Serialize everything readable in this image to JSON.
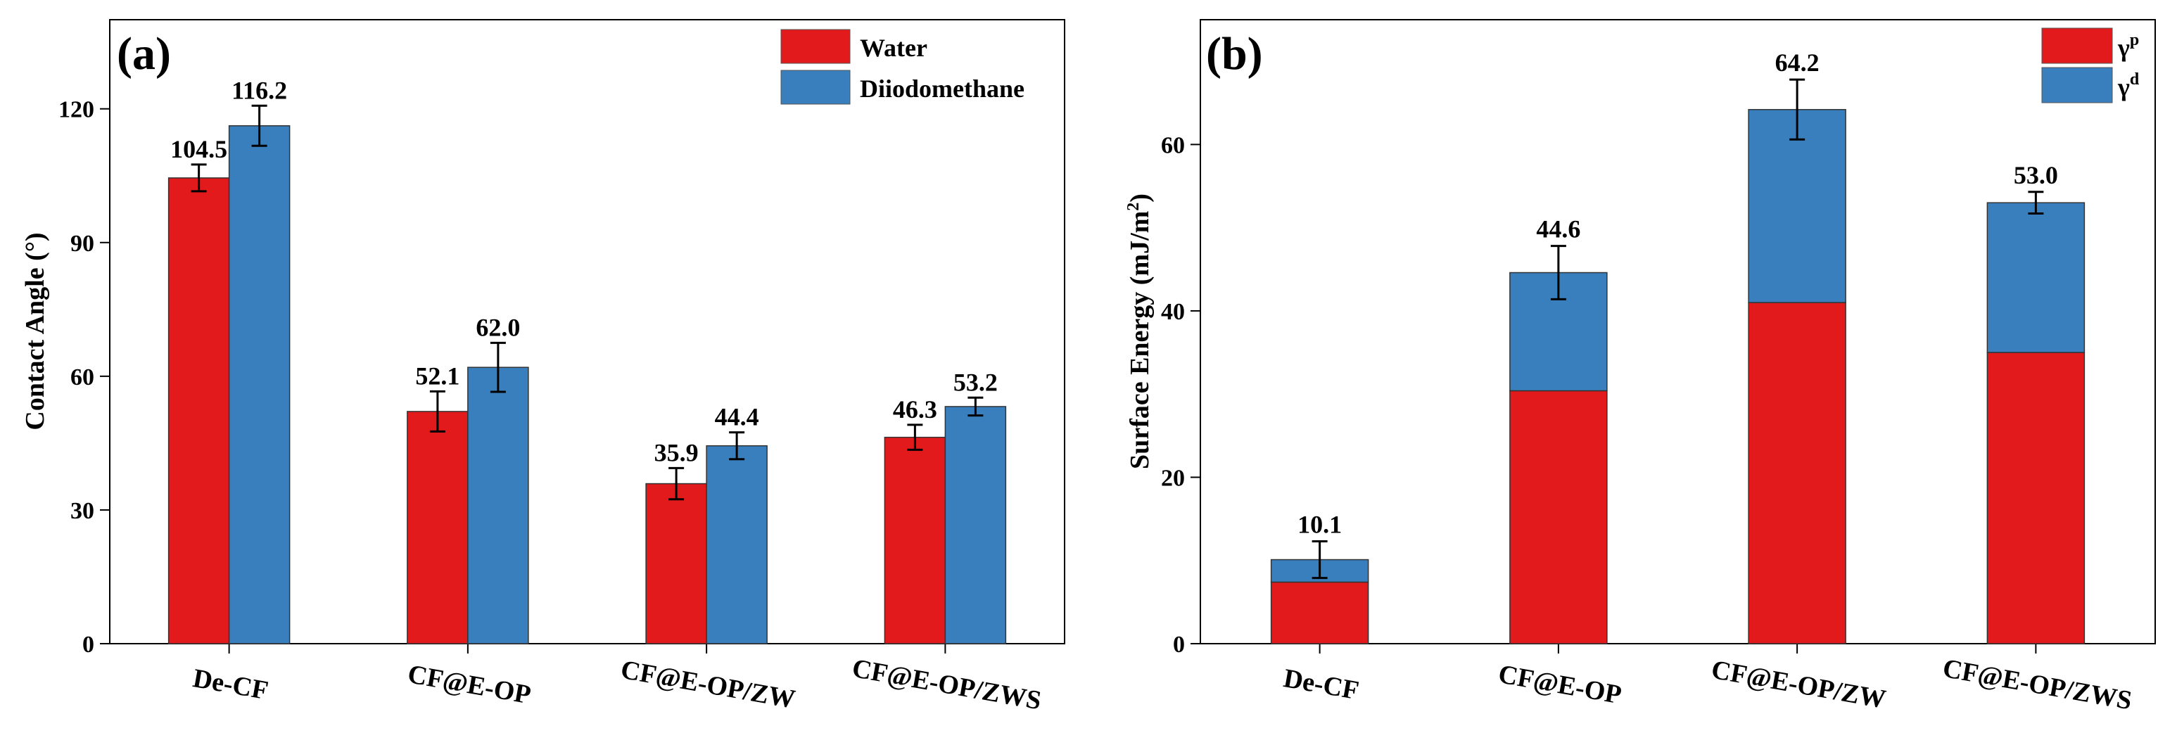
{
  "colors": {
    "water": "#e31a1c",
    "diiodomethane": "#3a7fbd",
    "gamma_p": "#e31a1c",
    "gamma_d": "#3a7fbd"
  },
  "chart_data": [
    {
      "type": "bar",
      "panel": "(a)",
      "ylabel": "Contact Angle (°)",
      "ylim": [
        0,
        140
      ],
      "yticks": [
        0,
        30,
        60,
        90,
        120
      ],
      "categories": [
        "De-CF",
        "CF@E-OP",
        "CF@E-OP/ZW",
        "CF@E-OP/ZWS"
      ],
      "series": [
        {
          "name": "Water",
          "values": [
            104.5,
            52.1,
            35.9,
            46.3
          ],
          "errors": [
            3.0,
            4.5,
            3.5,
            2.8
          ],
          "labels": [
            "104.5",
            "52.1",
            "35.9",
            "46.3"
          ]
        },
        {
          "name": "Diiodomethane",
          "values": [
            116.2,
            62.0,
            44.4,
            53.2
          ],
          "errors": [
            4.5,
            5.5,
            3.0,
            2.0
          ],
          "labels": [
            "116.2",
            "62.0",
            "44.4",
            "53.2"
          ]
        }
      ],
      "legend_position": "top-right"
    },
    {
      "type": "stacked-bar",
      "panel": "(b)",
      "ylabel": "Surface Energy (mJ/m",
      "ylabel_sup": "2",
      "ylabel_end": ")",
      "ylim": [
        0,
        75
      ],
      "yticks": [
        0,
        20,
        40,
        60
      ],
      "categories": [
        "De-CF",
        "CF@E-OP",
        "CF@E-OP/ZW",
        "CF@E-OP/ZWS"
      ],
      "series": [
        {
          "name": "γ",
          "sup": "p",
          "values": [
            7.4,
            30.4,
            41.0,
            35.0
          ]
        },
        {
          "name": "γ",
          "sup": "d",
          "values": [
            2.7,
            14.2,
            23.2,
            18.0
          ]
        }
      ],
      "totals": [
        10.1,
        44.6,
        64.2,
        53.0
      ],
      "total_labels": [
        "10.1",
        "44.6",
        "64.2",
        "53.0"
      ],
      "errors": [
        2.2,
        3.2,
        3.6,
        1.3
      ],
      "legend_position": "top-right"
    }
  ]
}
